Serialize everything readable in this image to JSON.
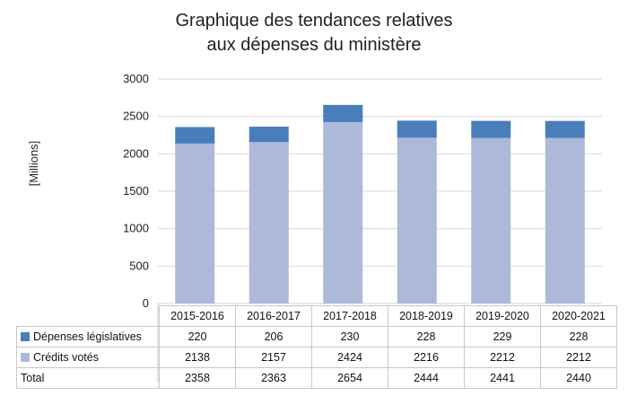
{
  "chart_data": {
    "type": "bar",
    "stacked": true,
    "title_lines": [
      "Graphique des tendances relatives",
      "aux dépenses du ministère"
    ],
    "xlabel": "",
    "ylabel": "[Millions]",
    "ylim": [
      0,
      3000
    ],
    "yticks": [
      0,
      500,
      1000,
      1500,
      2000,
      2500,
      3000
    ],
    "grid": true,
    "legend": "table",
    "categories": [
      "2015-2016",
      "2016-2017",
      "2017-2018",
      "2018-2019",
      "2019-2020",
      "2020-2021"
    ],
    "series": [
      {
        "name": "Crédits votés",
        "values": [
          2138,
          2157,
          2424,
          2216,
          2212,
          2212
        ],
        "color": "#adb9d8"
      },
      {
        "name": "Dépenses législatives",
        "values": [
          220,
          206,
          230,
          228,
          229,
          228
        ],
        "color": "#4a7ebb"
      }
    ],
    "table_rows": [
      {
        "label": "Dépenses législatives",
        "values": [
          220,
          206,
          230,
          228,
          229,
          228
        ],
        "color": "#4a7ebb"
      },
      {
        "label": "Crédits votés",
        "values": [
          2138,
          2157,
          2424,
          2216,
          2212,
          2212
        ],
        "color": "#adb9d8"
      },
      {
        "label": "Total",
        "values": [
          2358,
          2363,
          2654,
          2444,
          2441,
          2440
        ]
      }
    ]
  }
}
